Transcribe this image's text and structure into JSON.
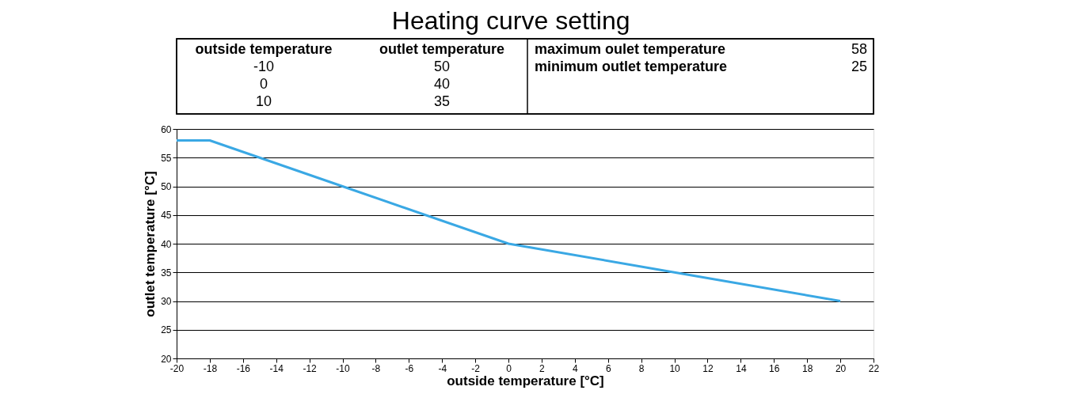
{
  "chart_data": {
    "type": "line",
    "title": "Heating curve setting",
    "xlabel": "outside temperature [°C]",
    "ylabel": "outlet temperature [°C]",
    "x": [
      -20,
      -18,
      -10,
      0,
      10,
      20
    ],
    "series": [
      {
        "color": "#3aa8e4",
        "values": [
          58,
          58,
          50,
          40,
          35,
          30
        ]
      }
    ],
    "xlim": [
      -20,
      22
    ],
    "xticks": [
      -20,
      -18,
      -16,
      -14,
      -12,
      -10,
      -8,
      -6,
      -4,
      -2,
      0,
      2,
      4,
      6,
      8,
      10,
      12,
      14,
      16,
      18,
      20,
      22
    ],
    "ylim": [
      20,
      60
    ],
    "yticks": [
      20,
      25,
      30,
      35,
      40,
      45,
      50,
      55,
      60
    ],
    "grid": "y",
    "marker": "none",
    "line_style": "solid",
    "annotations": [
      "outside temperature",
      "outlet temperature",
      "-10",
      "50",
      "0",
      "40",
      "10",
      "35",
      "maximum oulet temperature",
      "58",
      "minimum outlet temperature",
      "25"
    ]
  }
}
